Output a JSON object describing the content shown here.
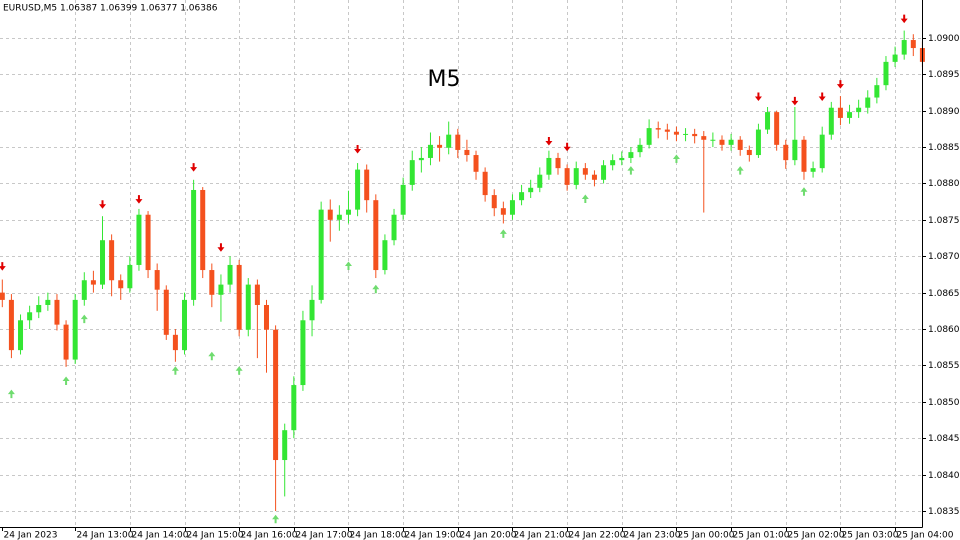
{
  "chart_data": {
    "type": "candlestick",
    "title": "EURUSD,M5  1.06387 1.06399 1.06377 1.06386",
    "watermark": "M5",
    "grid": true,
    "bull_color": "#33e633",
    "bear_color": "#f4511e",
    "sell_color": "#e00000",
    "buy_color": "#6fdc6f",
    "watermark_color": "#c2185b",
    "ylim": [
      1.08328,
      1.09052
    ],
    "yticks": [
      {
        "value": 1.0835,
        "label": "1.08350"
      },
      {
        "value": 1.084,
        "label": "1.08400"
      },
      {
        "value": 1.0845,
        "label": "1.08450"
      },
      {
        "value": 1.085,
        "label": "1.08500"
      },
      {
        "value": 1.0855,
        "label": "1.08550"
      },
      {
        "value": 1.086,
        "label": "1.08600"
      },
      {
        "value": 1.0865,
        "label": "1.08650"
      },
      {
        "value": 1.087,
        "label": "1.08700"
      },
      {
        "value": 1.0875,
        "label": "1.08750"
      },
      {
        "value": 1.088,
        "label": "1.08800"
      },
      {
        "value": 1.0885,
        "label": "1.08850"
      },
      {
        "value": 1.089,
        "label": "1.08900"
      },
      {
        "value": 1.0895,
        "label": "1.08950"
      },
      {
        "value": 1.09,
        "label": "1.09000"
      }
    ],
    "categories": [
      "24 Jan 2023",
      null,
      null,
      null,
      null,
      null,
      null,
      null,
      "24 Jan 13:00",
      null,
      null,
      null,
      null,
      null,
      "24 Jan 14:00",
      null,
      null,
      null,
      null,
      null,
      "24 Jan 15:00",
      null,
      null,
      null,
      null,
      null,
      "24 Jan 16:00",
      null,
      null,
      null,
      null,
      null,
      "24 Jan 17:00",
      null,
      null,
      null,
      null,
      null,
      "24 Jan 18:00",
      null,
      null,
      null,
      null,
      null,
      "24 Jan 19:00",
      null,
      null,
      null,
      null,
      null,
      "24 Jan 20:00",
      null,
      null,
      null,
      null,
      null,
      "24 Jan 21:00",
      null,
      null,
      null,
      null,
      null,
      "24 Jan 22:00",
      null,
      null,
      null,
      null,
      null,
      "24 Jan 23:00",
      null,
      null,
      null,
      null,
      null,
      "25 Jan 00:00",
      null,
      null,
      null,
      null,
      null,
      "25 Jan 01:00",
      null,
      null,
      null,
      null,
      null,
      "25 Jan 02:00",
      null,
      null,
      null,
      null,
      null,
      "25 Jan 03:00",
      null,
      null,
      null,
      null,
      null,
      "25 Jan 04:00",
      null,
      null,
      null
    ],
    "open": [
      1.0865,
      1.0864,
      1.08571,
      1.08612,
      1.08623,
      1.08633,
      1.0864,
      1.08606,
      1.08558,
      1.0864,
      1.08667,
      1.08661,
      1.08722,
      1.08667,
      1.08656,
      1.08688,
      1.08757,
      1.08681,
      1.08654,
      1.08592,
      1.08571,
      1.0864,
      1.08791,
      1.08681,
      1.08647,
      1.08661,
      1.08688,
      1.08599,
      1.08661,
      1.08633,
      1.08599,
      1.0842,
      1.08461,
      1.08523,
      1.08612,
      1.0864,
      1.08764,
      1.0875,
      1.08757,
      1.08764,
      1.08819,
      1.08777,
      1.08681,
      1.08722,
      1.08757,
      1.08798,
      1.08832,
      1.08835,
      1.08853,
      1.08849,
      1.08867,
      1.08846,
      1.08839,
      1.08816,
      1.08784,
      1.08766,
      1.08757,
      1.08777,
      1.08788,
      1.08794,
      1.08812,
      1.08835,
      1.08821,
      1.08798,
      1.08821,
      1.08812,
      1.08805,
      1.08825,
      1.08832,
      1.08835,
      1.08843,
      1.08853,
      1.08876,
      1.08874,
      1.08871,
      1.08867,
      1.08868,
      1.08865,
      1.0886,
      1.0886,
      1.08853,
      1.0886,
      1.08846,
      1.08839,
      1.08874,
      1.08898,
      1.08853,
      1.08832,
      1.0886,
      1.08816,
      1.08821,
      1.08867,
      1.08904,
      1.0889,
      1.08898,
      1.08904,
      1.08918,
      1.08935,
      1.08967,
      1.08977,
      1.08997,
      1.08986
    ],
    "high": [
      1.08668,
      1.08648,
      1.0862,
      1.08632,
      1.08645,
      1.0865,
      1.08648,
      1.08612,
      1.08648,
      1.08678,
      1.0868,
      1.08755,
      1.0873,
      1.08675,
      1.087,
      1.08765,
      1.08762,
      1.0869,
      1.0866,
      1.086,
      1.0865,
      1.08805,
      1.08795,
      1.0869,
      1.08675,
      1.087,
      1.08695,
      1.0867,
      1.08668,
      1.0864,
      1.08605,
      1.0847,
      1.08535,
      1.08625,
      1.0866,
      1.08775,
      1.08778,
      1.0877,
      1.0879,
      1.08828,
      1.08826,
      1.08785,
      1.0873,
      1.08765,
      1.08808,
      1.08845,
      1.0885,
      1.0887,
      1.08865,
      1.08885,
      1.08875,
      1.0886,
      1.08845,
      1.08822,
      1.08792,
      1.08775,
      1.08785,
      1.08798,
      1.08805,
      1.08822,
      1.08845,
      1.08842,
      1.08826,
      1.0883,
      1.08828,
      1.08818,
      1.08832,
      1.0884,
      1.08844,
      1.0885,
      1.08862,
      1.08888,
      1.08885,
      1.08882,
      1.08878,
      1.08876,
      1.08875,
      1.08872,
      1.0887,
      1.08866,
      1.08868,
      1.08865,
      1.08852,
      1.08882,
      1.08905,
      1.089,
      1.0886,
      1.08905,
      1.08865,
      1.0883,
      1.08878,
      1.08912,
      1.0892,
      1.08908,
      1.08915,
      1.08928,
      1.08945,
      1.08975,
      1.08988,
      1.0901,
      1.09005,
      1.08995
    ],
    "low": [
      1.0863,
      1.0856,
      1.08565,
      1.086,
      1.08615,
      1.08625,
      1.08598,
      1.08548,
      1.08552,
      1.08632,
      1.0865,
      1.08655,
      1.08645,
      1.0864,
      1.0865,
      1.0868,
      1.0867,
      1.08625,
      1.08585,
      1.08555,
      1.08565,
      1.08632,
      1.0867,
      1.0863,
      1.0861,
      1.0865,
      1.0859,
      1.0859,
      1.0856,
      1.0854,
      1.0835,
      1.0837,
      1.0845,
      1.08515,
      1.0859,
      1.08635,
      1.0872,
      1.08735,
      1.08745,
      1.08755,
      1.0876,
      1.0867,
      1.08675,
      1.08715,
      1.0875,
      1.0879,
      1.08815,
      1.08825,
      1.0883,
      1.0884,
      1.08835,
      1.0883,
      1.08805,
      1.08775,
      1.08755,
      1.08745,
      1.0875,
      1.0877,
      1.0878,
      1.08788,
      1.08805,
      1.08812,
      1.0879,
      1.08792,
      1.08805,
      1.08796,
      1.088,
      1.08818,
      1.08825,
      1.08828,
      1.08836,
      1.08848,
      1.08862,
      1.0886,
      1.08858,
      1.08858,
      1.08855,
      1.0876,
      1.0885,
      1.08845,
      1.08845,
      1.08838,
      1.0883,
      1.08835,
      1.08868,
      1.08845,
      1.0882,
      1.08825,
      1.08805,
      1.08808,
      1.08815,
      1.0886,
      1.0888,
      1.08882,
      1.0889,
      1.08896,
      1.0891,
      1.08928,
      1.0896,
      1.0897,
      1.08975,
      1.0896
    ],
    "close": [
      1.0864,
      1.08571,
      1.08612,
      1.08623,
      1.08633,
      1.0864,
      1.08606,
      1.08558,
      1.0864,
      1.08667,
      1.08661,
      1.08722,
      1.08667,
      1.08656,
      1.08688,
      1.08757,
      1.08681,
      1.08654,
      1.08592,
      1.08571,
      1.0864,
      1.08791,
      1.08681,
      1.08647,
      1.08661,
      1.08688,
      1.08599,
      1.08661,
      1.08633,
      1.08599,
      1.0842,
      1.08461,
      1.08523,
      1.08612,
      1.0864,
      1.08764,
      1.0875,
      1.08757,
      1.08764,
      1.08819,
      1.08777,
      1.08681,
      1.08722,
      1.08757,
      1.08798,
      1.08832,
      1.08835,
      1.08853,
      1.08849,
      1.08867,
      1.08846,
      1.08839,
      1.08816,
      1.08784,
      1.08766,
      1.08757,
      1.08777,
      1.08788,
      1.08794,
      1.08812,
      1.08835,
      1.08821,
      1.08798,
      1.08821,
      1.08812,
      1.08805,
      1.08825,
      1.08832,
      1.08835,
      1.08843,
      1.08853,
      1.08876,
      1.08874,
      1.08871,
      1.08867,
      1.08868,
      1.08865,
      1.0886,
      1.0886,
      1.08853,
      1.0886,
      1.08846,
      1.08839,
      1.08874,
      1.08898,
      1.08853,
      1.08832,
      1.0886,
      1.08816,
      1.08821,
      1.08867,
      1.08904,
      1.0889,
      1.08898,
      1.08904,
      1.08918,
      1.08935,
      1.08967,
      1.08977,
      1.08997,
      1.08986,
      1.08967
    ],
    "sell_signals": [
      1.08685,
      null,
      null,
      null,
      null,
      null,
      null,
      null,
      null,
      null,
      null,
      1.0877,
      null,
      null,
      null,
      1.08777,
      null,
      null,
      null,
      null,
      null,
      1.08821,
      null,
      null,
      1.08711,
      null,
      null,
      null,
      null,
      null,
      null,
      null,
      null,
      null,
      null,
      null,
      null,
      null,
      null,
      1.08846,
      null,
      null,
      null,
      null,
      null,
      null,
      null,
      null,
      null,
      null,
      null,
      null,
      null,
      null,
      null,
      null,
      null,
      null,
      null,
      null,
      1.08857,
      null,
      1.08849,
      null,
      null,
      null,
      null,
      null,
      null,
      null,
      null,
      null,
      null,
      null,
      null,
      null,
      null,
      null,
      null,
      null,
      null,
      null,
      null,
      1.08918,
      null,
      null,
      null,
      1.08912,
      null,
      null,
      1.08918,
      null,
      1.08935,
      null,
      null,
      null,
      null,
      null,
      null,
      1.09025,
      null,
      null
    ],
    "buy_signals": [
      null,
      1.08512,
      null,
      null,
      null,
      null,
      null,
      1.0853,
      null,
      1.08615,
      null,
      null,
      null,
      null,
      null,
      null,
      null,
      null,
      null,
      1.08544,
      null,
      null,
      null,
      1.08564,
      null,
      null,
      1.08544,
      null,
      null,
      null,
      1.0834,
      null,
      null,
      null,
      null,
      null,
      null,
      null,
      1.08688,
      null,
      null,
      1.08656,
      null,
      null,
      null,
      null,
      null,
      null,
      null,
      null,
      null,
      null,
      null,
      null,
      null,
      1.08732,
      null,
      null,
      null,
      null,
      null,
      null,
      null,
      null,
      1.0878,
      null,
      null,
      null,
      null,
      1.08819,
      null,
      null,
      null,
      null,
      1.08835,
      null,
      null,
      null,
      null,
      null,
      null,
      1.08819,
      null,
      null,
      null,
      null,
      null,
      null,
      1.0879,
      null,
      null,
      null,
      null,
      null,
      null,
      null,
      null,
      null,
      null,
      null,
      null,
      null
    ]
  }
}
